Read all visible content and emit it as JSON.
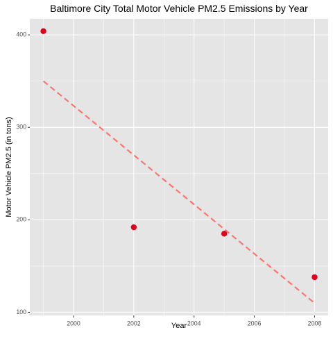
{
  "chart_data": {
    "type": "scatter",
    "title": "Baltimore City Total Motor Vehicle PM2.5 Emissions by Year",
    "xlabel": "Year",
    "ylabel": "Motor Vehicle PM2.5 (in tons)",
    "x": [
      1999,
      2002,
      2005,
      2008
    ],
    "y": [
      404,
      192,
      185,
      138
    ],
    "xlim": [
      1998.55,
      2008.45
    ],
    "ylim": [
      96.6,
      417.4
    ],
    "x_ticks": [
      2000,
      2002,
      2004,
      2006,
      2008
    ],
    "x_minor_ticks": [
      1999,
      2001,
      2003,
      2005,
      2007
    ],
    "y_ticks": [
      100,
      200,
      300,
      400
    ],
    "y_minor_ticks": [
      150,
      250,
      350
    ],
    "trend_line": {
      "x": [
        1999,
        2008
      ],
      "y": [
        350,
        110
      ]
    },
    "grid": true,
    "legend": "none",
    "colors": {
      "panel_background": "#e5e5e5",
      "gridline": "#ffffff",
      "point": "#e3001b",
      "trend_line": "#f8766d",
      "text": "#000000",
      "tick_label": "#4d4d4d"
    }
  }
}
